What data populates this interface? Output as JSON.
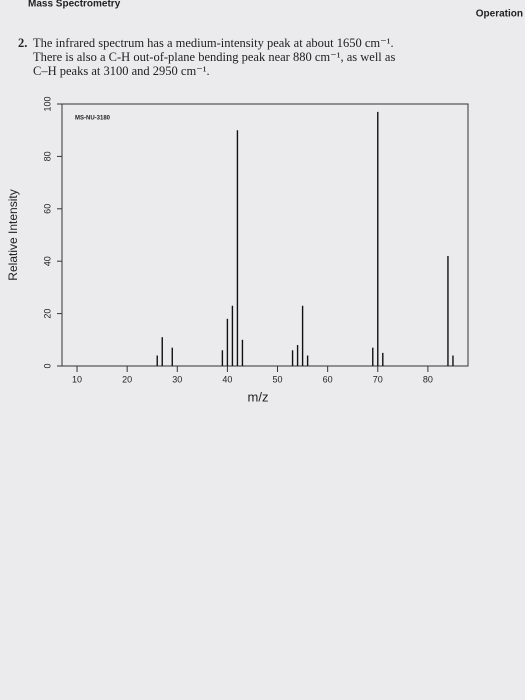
{
  "header": {
    "left": "Mass Spectrometry",
    "right": "Operation"
  },
  "question": {
    "number": "2.",
    "lines": [
      "The infrared spectrum has a medium-intensity peak at about 1650 cm⁻¹.",
      "There is also a C-H out-of-plane bending peak near 880 cm⁻¹, as well as",
      "C–H peaks at 3100 and 2950 cm⁻¹."
    ]
  },
  "chart_data": {
    "type": "bar",
    "annotation": "MS-NU-3180",
    "x_label": "m/z",
    "y_label": "Relative Intensity",
    "x": [
      26,
      27,
      29,
      39,
      40,
      41,
      42,
      43,
      53,
      54,
      55,
      56,
      69,
      70,
      71,
      84,
      85
    ],
    "values": [
      4,
      11,
      7,
      6,
      18,
      23,
      90,
      10,
      6,
      8,
      23,
      4,
      7,
      97,
      5,
      42,
      4
    ],
    "color": "#111111",
    "xlim": [
      7,
      88
    ],
    "xticks": [
      10,
      20,
      30,
      40,
      50,
      60,
      70,
      80
    ],
    "ylim": [
      0,
      100
    ],
    "yticks": [
      0,
      20,
      40,
      60,
      80,
      100
    ]
  }
}
